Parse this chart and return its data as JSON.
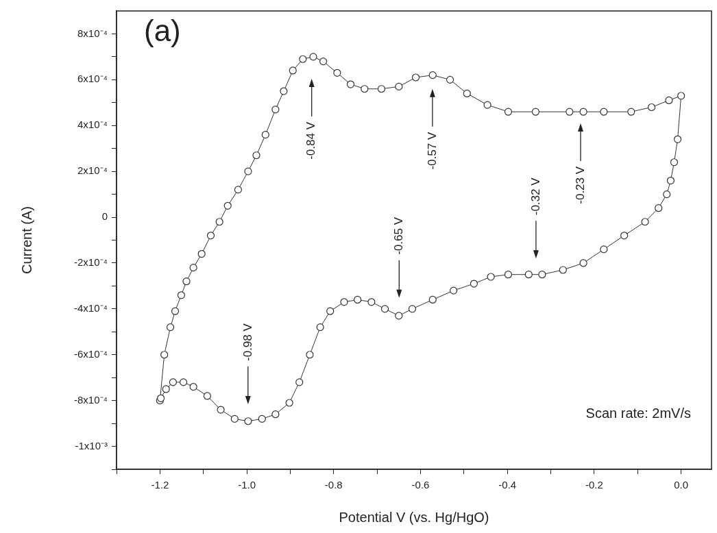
{
  "chart_data": {
    "type": "line",
    "xlabel": "Potential V (vs. Hg/HgO)",
    "ylabel": "Current (A)",
    "color": "#333333",
    "marker": "circle",
    "line_style": "solid",
    "x": [
      -1.2,
      -1.19,
      -1.176,
      -1.165,
      -1.151,
      -1.139,
      -1.123,
      -1.104,
      -1.083,
      -1.063,
      -1.044,
      -1.02,
      -0.997,
      -0.978,
      -0.957,
      -0.934,
      -0.915,
      -0.894,
      -0.871,
      -0.847,
      -0.824,
      -0.792,
      -0.761,
      -0.729,
      -0.69,
      -0.65,
      -0.611,
      -0.572,
      -0.532,
      -0.493,
      -0.446,
      -0.398,
      -0.335,
      -0.257,
      -0.225,
      -0.178,
      -0.115,
      -0.068,
      -0.028,
      0.0,
      -0.008,
      -0.016,
      -0.024,
      -0.033,
      -0.052,
      -0.083,
      -0.131,
      -0.178,
      -0.225,
      -0.272,
      -0.32,
      -0.351,
      -0.398,
      -0.438,
      -0.477,
      -0.524,
      -0.572,
      -0.619,
      -0.65,
      -0.682,
      -0.713,
      -0.745,
      -0.776,
      -0.808,
      -0.831,
      -0.855,
      -0.879,
      -0.902,
      -0.934,
      -0.965,
      -0.997,
      -1.028,
      -1.06,
      -1.091,
      -1.123,
      -1.146,
      -1.17,
      -1.186,
      -1.198
    ],
    "values": [
      -0.0008,
      -0.0006,
      -0.00048,
      -0.00041,
      -0.00034,
      -0.00028,
      -0.00022,
      -0.00016,
      -8e-05,
      -2e-05,
      5e-05,
      0.00012,
      0.0002,
      0.00027,
      0.00036,
      0.00047,
      0.00055,
      0.00064,
      0.00069,
      0.0007,
      0.00068,
      0.00063,
      0.00058,
      0.00056,
      0.00056,
      0.00057,
      0.00061,
      0.00062,
      0.0006,
      0.00054,
      0.00049,
      0.00046,
      0.00046,
      0.00046,
      0.00046,
      0.00046,
      0.00046,
      0.00048,
      0.00051,
      0.00053,
      0.00034,
      0.00024,
      0.00016,
      0.0001,
      4e-05,
      -2e-05,
      -8e-05,
      -0.00014,
      -0.0002,
      -0.00023,
      -0.00025,
      -0.00025,
      -0.00025,
      -0.00026,
      -0.00029,
      -0.00032,
      -0.00036,
      -0.0004,
      -0.00043,
      -0.0004,
      -0.00037,
      -0.00036,
      -0.00037,
      -0.00041,
      -0.00048,
      -0.0006,
      -0.00072,
      -0.00081,
      -0.00086,
      -0.00088,
      -0.00089,
      -0.00088,
      -0.00084,
      -0.00078,
      -0.00074,
      -0.00072,
      -0.00072,
      -0.00075,
      -0.00079
    ],
    "xlim": [
      -1.3,
      0.07
    ],
    "xticks": [
      {
        "value": -1.3,
        "label": null
      },
      {
        "value": -1.2,
        "label": "-1.2"
      },
      {
        "value": -1.1,
        "label": null
      },
      {
        "value": -1,
        "label": "-1.0"
      },
      {
        "value": -0.9,
        "label": null
      },
      {
        "value": -0.8,
        "label": "-0.8"
      },
      {
        "value": -0.7,
        "label": null
      },
      {
        "value": -0.6,
        "label": "-0.6"
      },
      {
        "value": -0.5,
        "label": null
      },
      {
        "value": -0.4,
        "label": "-0.4"
      },
      {
        "value": -0.3,
        "label": null
      },
      {
        "value": -0.2,
        "label": "-0.2"
      },
      {
        "value": -0.1,
        "label": null
      },
      {
        "value": 0,
        "label": "0.0"
      }
    ],
    "ylim": [
      -0.0011,
      0.0009
    ],
    "yticks": [
      {
        "value": -0.0011,
        "label": null
      },
      {
        "value": -0.001,
        "label": "-1x10⁻³"
      },
      {
        "value": -0.0009,
        "label": null
      },
      {
        "value": -0.0008,
        "label": "-8x10⁻⁴"
      },
      {
        "value": -0.0007,
        "label": null
      },
      {
        "value": -0.0006,
        "label": "-6x10⁻⁴"
      },
      {
        "value": -0.0005,
        "label": null
      },
      {
        "value": -0.0004,
        "label": "-4x10⁻⁴"
      },
      {
        "value": -0.0003,
        "label": null
      },
      {
        "value": -0.0002,
        "label": "-2x10⁻⁴"
      },
      {
        "value": -0.0001,
        "label": null
      },
      0,
      {
        "value": 0.0001,
        "label": null
      },
      {
        "value": 0.0002,
        "label": "2x10⁻⁴"
      },
      {
        "value": 0.0003,
        "label": null
      },
      {
        "value": 0.0004,
        "label": "4x10⁻⁴"
      },
      {
        "value": 0.0005,
        "label": null
      },
      {
        "value": 0.0006,
        "label": "6x10⁻⁴"
      },
      {
        "value": 0.0007,
        "label": null
      },
      {
        "value": 0.0008,
        "label": "8x10⁻⁴"
      }
    ],
    "annotations": [
      "(a)",
      "Scan rate: 2mV/s",
      "-0.84 V",
      "-0.57 V",
      "-0.23 V",
      "-0.98 V",
      "-0.65 V",
      "-0.32 V"
    ]
  }
}
